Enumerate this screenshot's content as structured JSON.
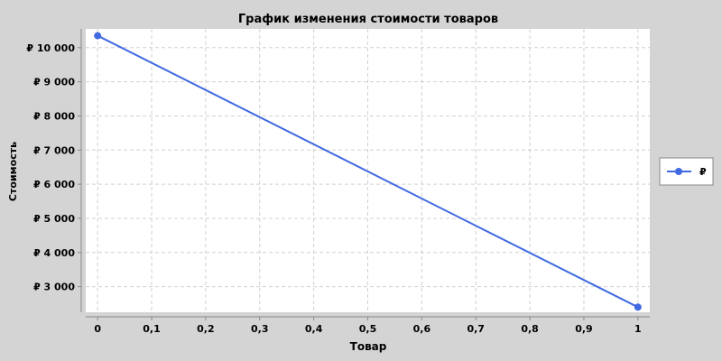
{
  "colors": {
    "background": "#d4d4d4",
    "plot_background": "#ffffff",
    "grid": "#d0d0d0",
    "series": "#4169e1",
    "axis": "#888888",
    "text": "#000000"
  },
  "chart_data": {
    "type": "line",
    "title": "График изменения стоимости товаров",
    "xlabel": "Товар",
    "ylabel": "Стоимость",
    "xlim": [
      -0.022,
      1.022
    ],
    "ylim": [
      2250,
      10550
    ],
    "x_ticks": [
      0,
      0.1,
      0.2,
      0.3,
      0.4,
      0.5,
      0.6,
      0.7,
      0.8,
      0.9,
      1
    ],
    "x_tick_labels": [
      "0",
      "0,1",
      "0,2",
      "0,3",
      "0,4",
      "0,5",
      "0,6",
      "0,7",
      "0,8",
      "0,9",
      "1"
    ],
    "y_ticks": [
      3000,
      4000,
      5000,
      6000,
      7000,
      8000,
      9000,
      10000
    ],
    "y_tick_labels": [
      "₽ 3 000",
      "₽ 4 000",
      "₽ 5 000",
      "₽ 6 000",
      "₽ 7 000",
      "₽ 8 000",
      "₽ 9 000",
      "₽ 10 000"
    ],
    "grid": true,
    "legend_position": "right",
    "series": [
      {
        "name": "₽",
        "x": [
          0,
          1
        ],
        "y": [
          10350,
          2400
        ]
      }
    ]
  }
}
